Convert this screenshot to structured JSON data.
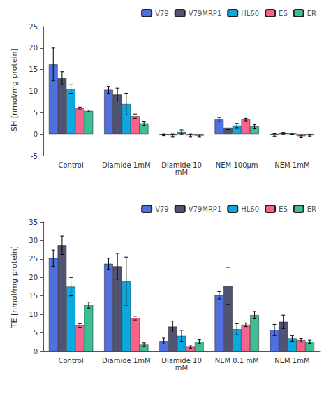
{
  "chart_data": [
    {
      "type": "bar",
      "categories": [
        "Control",
        "Diamide 1mM",
        "Diamide 10\nmM",
        "NEM 100μm",
        "NEM 1mM"
      ],
      "ylabel": "-SH [nmol/mg protein]",
      "ylim": [
        -5,
        25
      ],
      "yticks": [
        -5,
        0,
        5,
        10,
        15,
        20,
        25
      ],
      "grid": false,
      "legend": "upper right",
      "series": [
        {
          "name": "V79",
          "values": [
            16.2,
            10.3,
            -0.2,
            3.4,
            -0.2
          ],
          "errors": [
            3.8,
            0.8,
            0.2,
            0.5,
            0.3
          ]
        },
        {
          "name": "V79MRP1",
          "values": [
            13.0,
            9.2,
            -0.3,
            1.5,
            0.2
          ],
          "errors": [
            1.5,
            1.5,
            0.3,
            0.4,
            0.2
          ]
        },
        {
          "name": "HL60",
          "values": [
            10.5,
            7.0,
            0.5,
            2.0,
            0.1
          ],
          "errors": [
            1.0,
            2.5,
            0.5,
            0.5,
            0.15
          ]
        },
        {
          "name": "ES",
          "values": [
            6.0,
            4.2,
            -0.3,
            3.4,
            -0.5
          ],
          "errors": [
            0.3,
            0.5,
            0.3,
            0.3,
            0.2
          ]
        },
        {
          "name": "ER",
          "values": [
            5.4,
            2.5,
            -0.4,
            1.8,
            -0.3
          ],
          "errors": [
            0.2,
            0.5,
            0.2,
            0.4,
            0.2
          ]
        }
      ]
    },
    {
      "type": "bar",
      "categories": [
        "Control",
        "Diamide 1mM",
        "Diamide 10\nmM",
        "NEM 0.1 mM",
        "NEM 1mM"
      ],
      "ylabel": "TE [nmol/mg protein]",
      "ylim": [
        0,
        35
      ],
      "yticks": [
        0,
        5,
        10,
        15,
        20,
        25,
        30,
        35
      ],
      "grid": false,
      "legend": "upper right",
      "series": [
        {
          "name": "V79",
          "values": [
            25.2,
            23.7,
            2.8,
            15.2,
            5.8
          ],
          "errors": [
            2.2,
            1.5,
            0.8,
            1.0,
            1.5
          ]
        },
        {
          "name": "V79MRP1",
          "values": [
            28.7,
            23.0,
            6.7,
            17.7,
            8.0
          ],
          "errors": [
            2.5,
            3.5,
            1.5,
            5.0,
            1.8
          ]
        },
        {
          "name": "HL60",
          "values": [
            17.5,
            19.0,
            4.2,
            6.0,
            3.5
          ],
          "errors": [
            2.5,
            6.5,
            1.5,
            1.5,
            0.8
          ]
        },
        {
          "name": "ES",
          "values": [
            7.0,
            9.0,
            1.2,
            7.2,
            3.0
          ],
          "errors": [
            0.5,
            0.5,
            0.3,
            0.5,
            0.5
          ]
        },
        {
          "name": "ER",
          "values": [
            12.5,
            1.8,
            2.6,
            9.8,
            2.6
          ],
          "errors": [
            0.8,
            0.5,
            0.5,
            1.0,
            0.4
          ]
        }
      ]
    }
  ]
}
